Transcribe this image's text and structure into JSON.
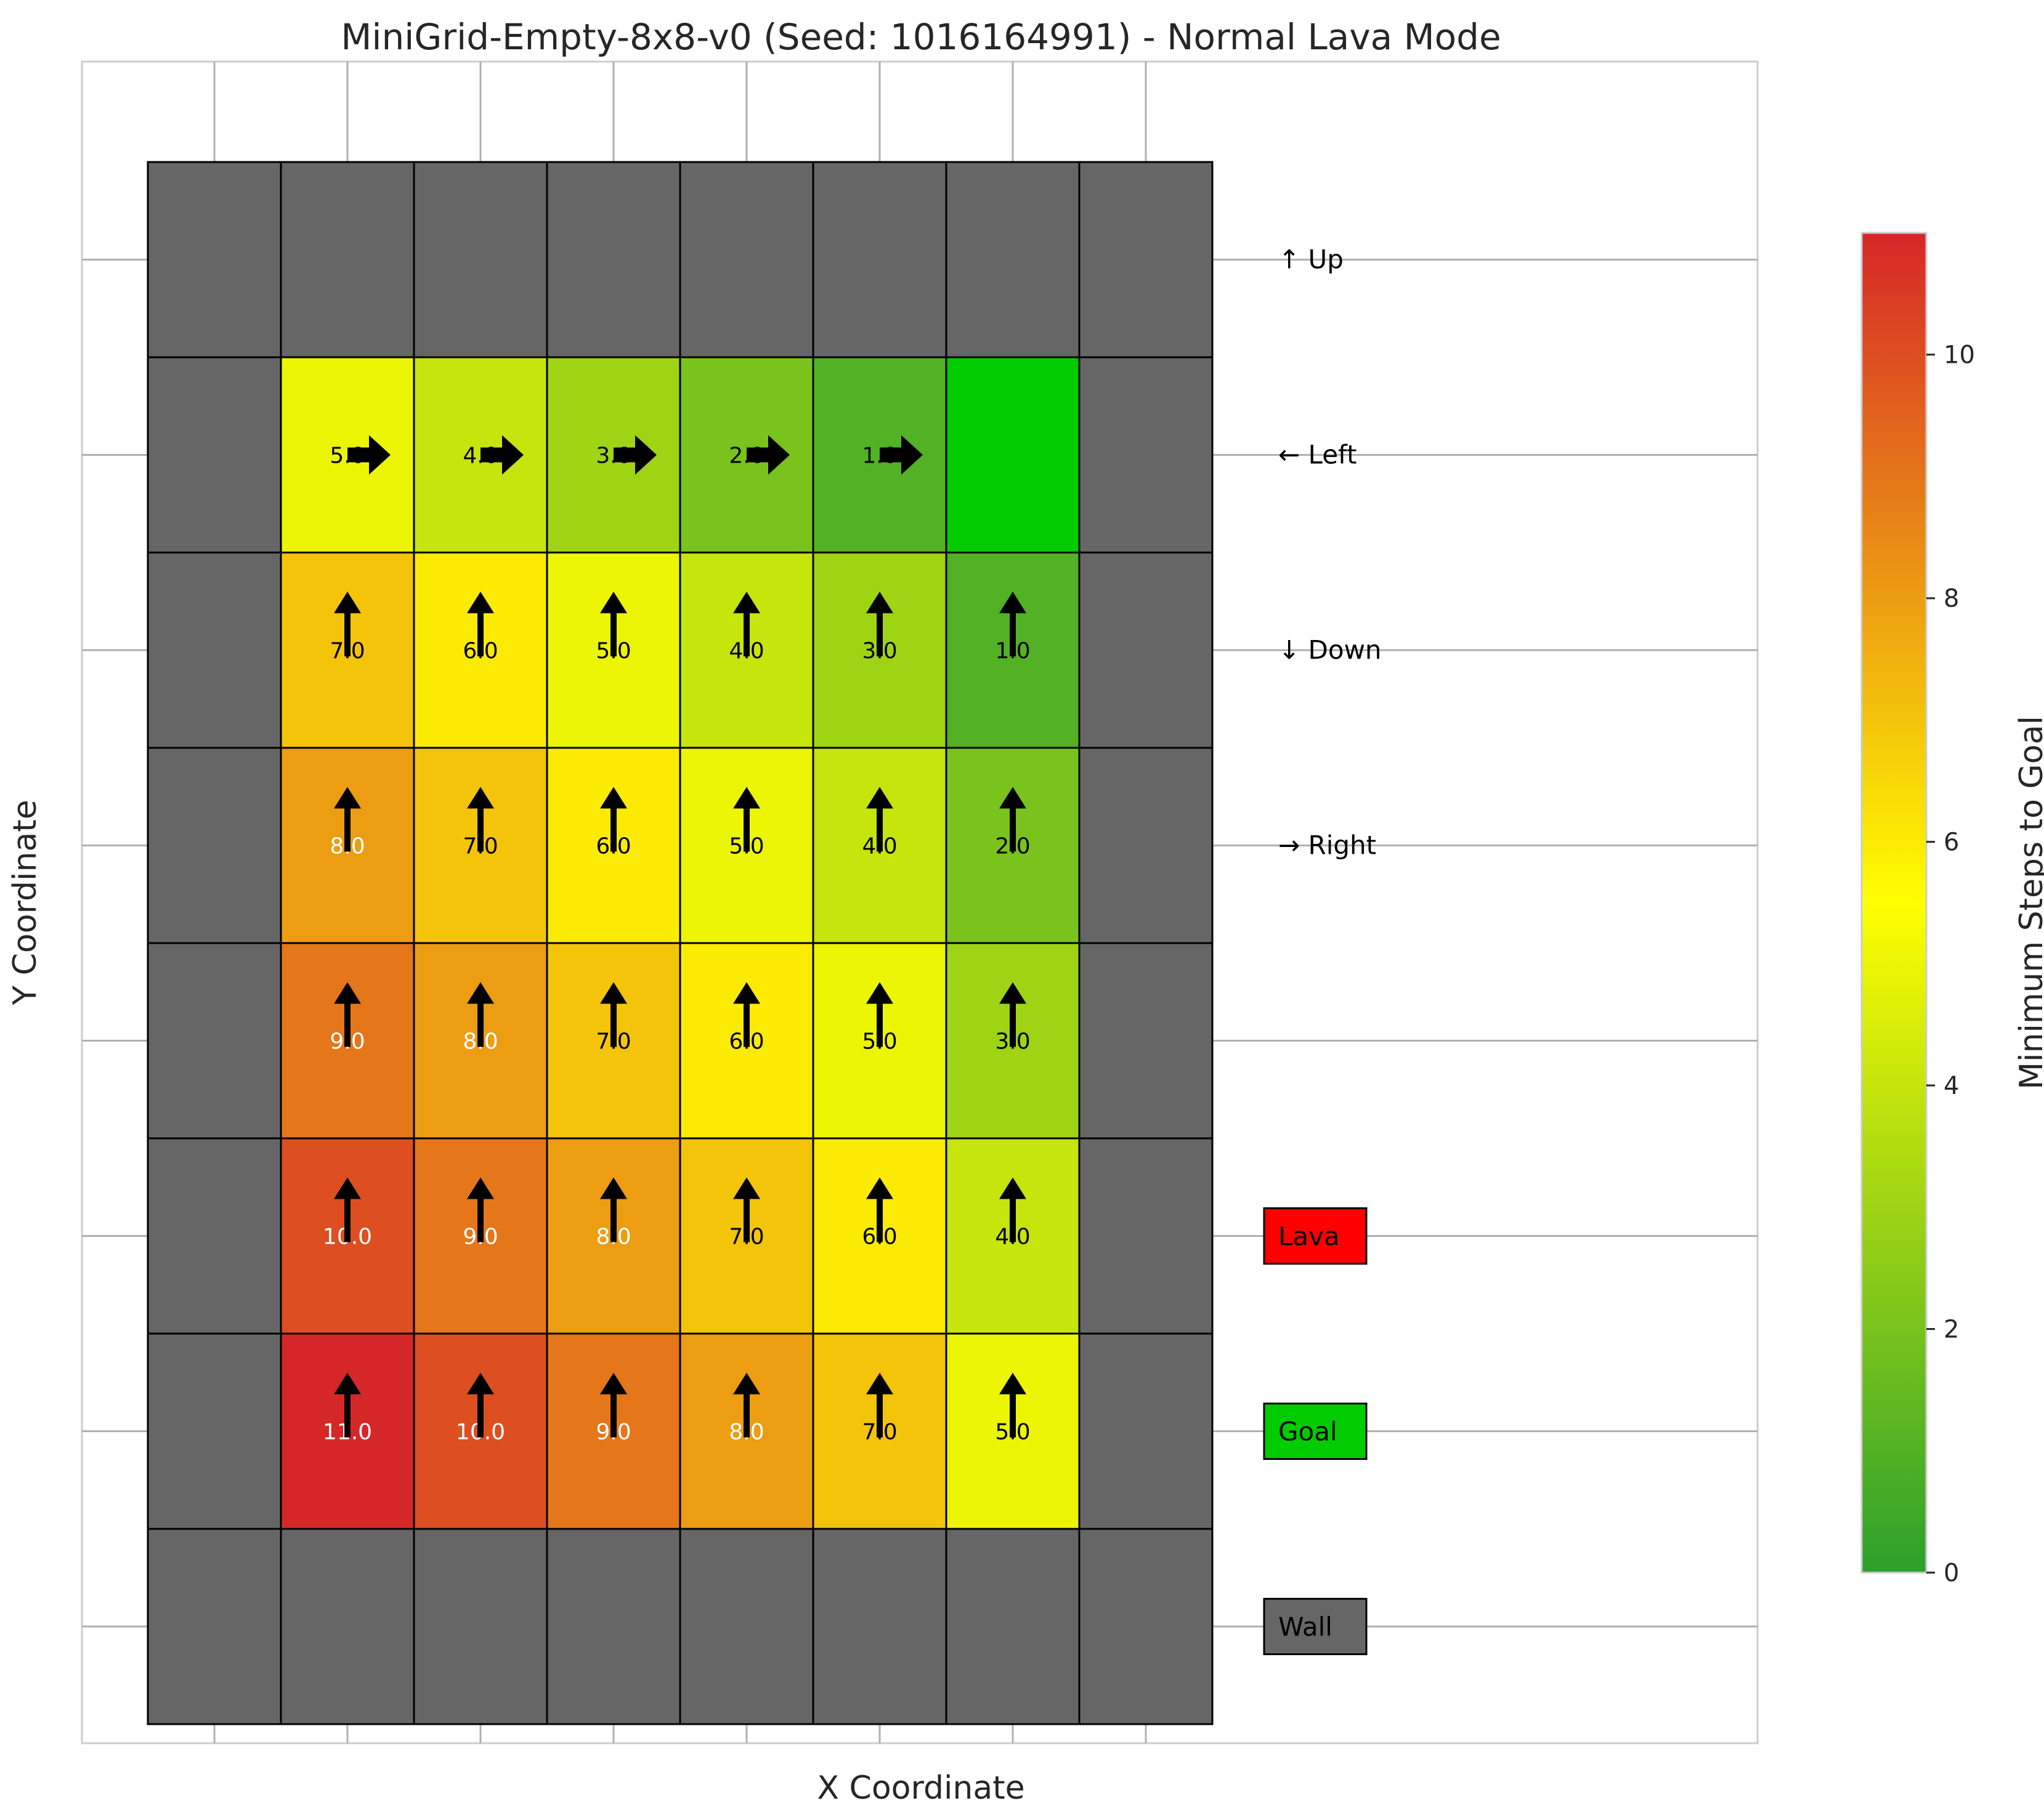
{
  "title": "MiniGrid-Empty-8x8-v0 (Seed: 1016164991) - Normal Lava Mode",
  "chart_data": {
    "type": "heatmap",
    "title": "MiniGrid-Empty-8x8-v0 (Seed: 1016164991) - Normal Lava Mode",
    "xlabel": "X Coordinate",
    "ylabel": "Y Coordinate",
    "grid_size": [
      8,
      8
    ],
    "grid": true,
    "cells": [
      [
        "W",
        "W",
        "W",
        "W",
        "W",
        "W",
        "W",
        "W"
      ],
      [
        "W",
        5,
        4,
        3,
        2,
        1,
        "G",
        "W"
      ],
      [
        "W",
        7,
        6,
        5,
        4,
        3,
        1,
        "W"
      ],
      [
        "W",
        8,
        7,
        6,
        5,
        4,
        2,
        "W"
      ],
      [
        "W",
        9,
        8,
        7,
        6,
        5,
        3,
        "W"
      ],
      [
        "W",
        10,
        9,
        8,
        7,
        6,
        4,
        "W"
      ],
      [
        "W",
        11,
        10,
        9,
        8,
        7,
        5,
        "W"
      ],
      [
        "W",
        "W",
        "W",
        "W",
        "W",
        "W",
        "W",
        "W"
      ]
    ],
    "arrows": [
      [
        "",
        "",
        "",
        "",
        "",
        "",
        "",
        ""
      ],
      [
        "",
        "right",
        "right",
        "right",
        "right",
        "right",
        "",
        ""
      ],
      [
        "",
        "up",
        "up",
        "up",
        "up",
        "up",
        "up",
        ""
      ],
      [
        "",
        "up",
        "up",
        "up",
        "up",
        "up",
        "up",
        ""
      ],
      [
        "",
        "up",
        "up",
        "up",
        "up",
        "up",
        "up",
        ""
      ],
      [
        "",
        "up",
        "up",
        "up",
        "up",
        "up",
        "up",
        ""
      ],
      [
        "",
        "up",
        "up",
        "up",
        "up",
        "up",
        "up",
        ""
      ],
      [
        "",
        "",
        "",
        "",
        "",
        "",
        "",
        ""
      ]
    ],
    "colorbar": {
      "label": "Minimum Steps to Goal",
      "range": [
        0,
        11
      ],
      "ticks": [
        "0",
        "2",
        "4",
        "6",
        "8",
        "10"
      ]
    },
    "direction_legend": [
      "↑ Up",
      "← Left",
      "↓ Down",
      "→ Right"
    ],
    "type_legend": [
      {
        "label": "Lava",
        "color": "#ff0000"
      },
      {
        "label": "Goal",
        "color": "#00cc00"
      },
      {
        "label": "Wall",
        "color": "#666666"
      }
    ],
    "colors": {
      "wall": "#666666",
      "goal": "#00cc00",
      "scale_low": "#2ca02c",
      "scale_mid": "#ffff00",
      "scale_high": "#d62728"
    }
  }
}
